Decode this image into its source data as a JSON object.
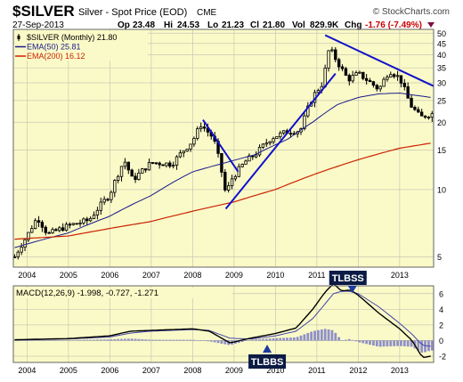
{
  "header": {
    "symbol": "$SILVER",
    "description": "Silver - Spot Price (EOD)",
    "exchange": "CME",
    "watermark": "© StockCharts.com",
    "date": "27-Sep-2013",
    "quote": {
      "op_label": "Op",
      "op": "23.48",
      "hi_label": "Hi",
      "hi": "24.53",
      "lo_label": "Lo",
      "lo": "21.23",
      "cl_label": "Cl",
      "cl": "21.80",
      "vol_label": "Vol",
      "vol": "829.9K",
      "chg_label": "Chg",
      "chg": "-1.76 (-7.49%)"
    }
  },
  "colors": {
    "panel_bg": "#fafac8",
    "frame": "#666666",
    "grid": "#c8c8b4",
    "candle": "#000000",
    "ema50": "#1a1a8c",
    "ema200": "#cc2200",
    "trendline": "#1111cc",
    "macd_line": "#000000",
    "signal_line": "#4444aa",
    "histogram": "#9090c8",
    "callout_bg": "#0b1b44",
    "callout_fg": "#ffffff",
    "chg_color": "#cc0000"
  },
  "chart_data": [
    {
      "type": "candlestick",
      "title": "$SILVER Silver - Spot Price (EOD) CME",
      "legend": [
        {
          "name": "$SILVER (Monthly) 21.80",
          "marker": "candle"
        },
        {
          "name": "EMA(50) 25.81",
          "color": "#1a1a8c"
        },
        {
          "name": "EMA(200) 16.12",
          "color": "#cc2200"
        }
      ],
      "legend_position": "top-left",
      "y_scale": "log",
      "ylim": [
        4.5,
        52
      ],
      "yticks": [
        "5",
        "10",
        "15",
        "20",
        "25",
        "30",
        "35",
        "40",
        "45",
        "50"
      ],
      "y_axis_side": "right",
      "xlim": [
        2003.67,
        2013.82
      ],
      "xticks": [
        "2004",
        "2005",
        "2006",
        "2007",
        "2008",
        "2009",
        "2010",
        "2011",
        "2012",
        "2013"
      ],
      "grid": true,
      "series": [
        {
          "name": "$SILVER (Monthly)",
          "kind": "monthly_ohlc_approx",
          "anchors_x": [
            2003.7,
            2004.0,
            2004.25,
            2004.5,
            2005.0,
            2005.5,
            2006.0,
            2006.35,
            2006.55,
            2007.0,
            2007.5,
            2008.0,
            2008.2,
            2008.5,
            2008.8,
            2008.95,
            2009.3,
            2009.5,
            2009.9,
            2010.3,
            2010.6,
            2010.9,
            2011.15,
            2011.3,
            2011.5,
            2011.75,
            2012.0,
            2012.25,
            2012.5,
            2012.75,
            2013.0,
            2013.25,
            2013.5,
            2013.75
          ],
          "anchors_close": [
            5.0,
            6.2,
            7.5,
            6.3,
            6.9,
            7.3,
            9.5,
            13.5,
            11.0,
            13.2,
            13.0,
            16.5,
            19.5,
            17.0,
            9.5,
            11.2,
            13.5,
            14.3,
            17.0,
            18.2,
            18.3,
            26.0,
            30.0,
            43.0,
            37.0,
            31.0,
            33.0,
            30.5,
            28.0,
            34.0,
            31.5,
            24.0,
            21.0,
            21.8
          ]
        },
        {
          "name": "EMA(50)",
          "x": [
            2003.7,
            2005.0,
            2006.0,
            2007.0,
            2008.0,
            2008.8,
            2009.5,
            2010.3,
            2010.9,
            2011.5,
            2012.0,
            2012.5,
            2013.0,
            2013.75
          ],
          "y": [
            5.5,
            6.4,
            7.6,
            9.4,
            12.0,
            13.2,
            14.3,
            16.8,
            20.0,
            24.0,
            25.8,
            26.8,
            27.0,
            25.81
          ]
        },
        {
          "name": "EMA(200)",
          "x": [
            2003.7,
            2005.0,
            2006.0,
            2007.0,
            2008.0,
            2009.0,
            2010.0,
            2011.0,
            2012.0,
            2013.0,
            2013.75
          ],
          "y": [
            6.0,
            6.2,
            6.7,
            7.2,
            8.0,
            8.8,
            10.0,
            11.8,
            13.6,
            15.3,
            16.12
          ]
        }
      ],
      "trendlines": [
        {
          "x": [
            2008.25,
            2009.1
          ],
          "y": [
            20.5,
            12.0
          ]
        },
        {
          "x": [
            2008.8,
            2011.45
          ],
          "y": [
            8.2,
            33.0
          ]
        },
        {
          "x": [
            2011.2,
            2013.82
          ],
          "y": [
            49.0,
            29.0
          ]
        }
      ]
    },
    {
      "type": "line",
      "title": "MACD(12,26,9) -1.998, -0.727, -1.271",
      "legend": [
        {
          "name": "MACD(12,26,9) -1.998, -0.727, -1.271"
        }
      ],
      "ylim": [
        -2.8,
        7.0
      ],
      "yticks": [
        "6",
        "4",
        "2",
        "0",
        "-2"
      ],
      "y_axis_side": "right",
      "xticks": [
        "2004",
        "2005",
        "2006",
        "2007",
        "2008",
        "2009",
        "2010",
        "2011",
        "2012",
        "2013"
      ],
      "grid": true,
      "series": [
        {
          "name": "MACD",
          "x": [
            2003.7,
            2005.0,
            2006.0,
            2006.5,
            2007.0,
            2008.0,
            2008.4,
            2008.9,
            2009.4,
            2010.0,
            2010.5,
            2010.9,
            2011.2,
            2011.4,
            2011.6,
            2011.8,
            2012.0,
            2012.5,
            2013.0,
            2013.3,
            2013.55,
            2013.75
          ],
          "y": [
            0.1,
            0.25,
            0.6,
            1.2,
            1.3,
            1.5,
            1.2,
            -0.3,
            0.3,
            0.9,
            1.6,
            4.0,
            6.2,
            7.3,
            6.3,
            6.5,
            5.8,
            3.5,
            1.5,
            0.0,
            -2.2,
            -2.0
          ]
        },
        {
          "name": "Signal",
          "x": [
            2003.7,
            2005.0,
            2006.0,
            2006.5,
            2007.0,
            2008.0,
            2008.4,
            2008.9,
            2009.4,
            2010.0,
            2010.5,
            2010.9,
            2011.2,
            2011.4,
            2011.6,
            2011.8,
            2012.0,
            2012.5,
            2013.0,
            2013.3,
            2013.55,
            2013.75
          ],
          "y": [
            0.05,
            0.2,
            0.45,
            0.95,
            1.2,
            1.4,
            1.3,
            0.3,
            0.2,
            0.6,
            1.2,
            2.8,
            4.7,
            6.0,
            6.3,
            6.3,
            6.0,
            4.3,
            2.2,
            0.8,
            -0.6,
            -0.73
          ]
        },
        {
          "name": "Histogram",
          "kind": "bars",
          "derived_from": "MACD - Signal"
        }
      ]
    }
  ],
  "annotations": [
    {
      "text": "TLBSS",
      "pane": "macd",
      "x": 2011.75,
      "y": 7.2,
      "arrow": "down"
    },
    {
      "text": "TLBBS",
      "pane": "macd",
      "x": 2009.8,
      "y": -0.2,
      "arrow": "up"
    }
  ]
}
